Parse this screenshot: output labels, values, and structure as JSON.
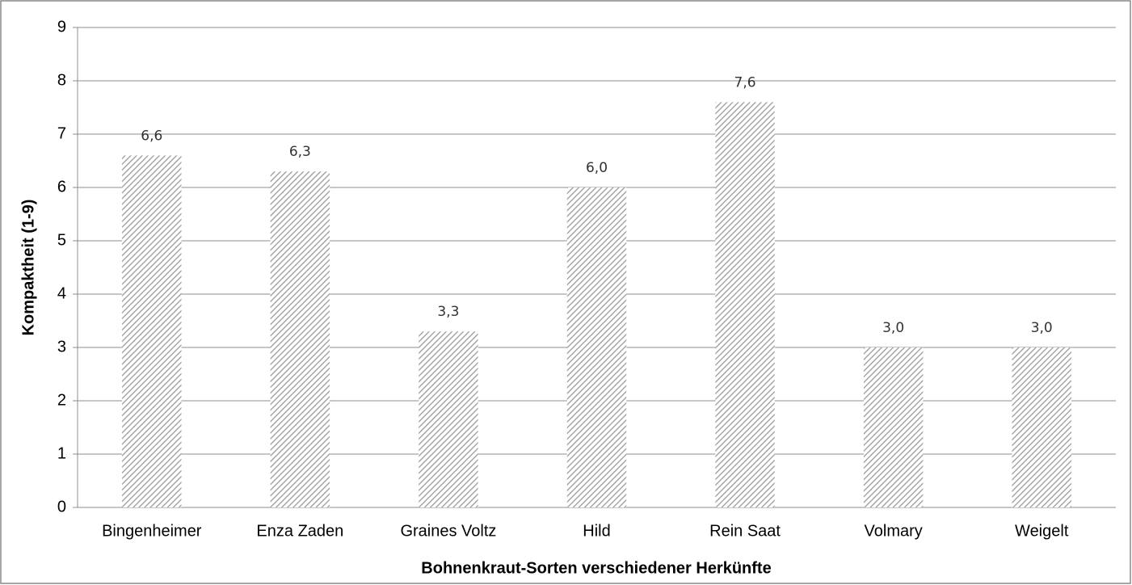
{
  "chart_data": {
    "type": "bar",
    "categories": [
      "Bingenheimer",
      "Enza Zaden",
      "Graines Voltz",
      "Hild",
      "Rein Saat",
      "Volmary",
      "Weigelt"
    ],
    "values": [
      6.6,
      6.3,
      3.3,
      6.0,
      7.6,
      3.0,
      3.0
    ],
    "value_labels": [
      "6,6",
      "6,3",
      "3,3",
      "6,0",
      "7,6",
      "3,0",
      "3,0"
    ],
    "color": "#9a9a9a",
    "ylabel": "Kompaktheit (1-9)",
    "xlabel": "Bohnenkraut-Sorten verschiedener Herkünfte",
    "ylim": [
      0,
      9
    ],
    "yticks": [
      0,
      1,
      2,
      3,
      4,
      5,
      6,
      7,
      8,
      9
    ],
    "grid": true
  }
}
